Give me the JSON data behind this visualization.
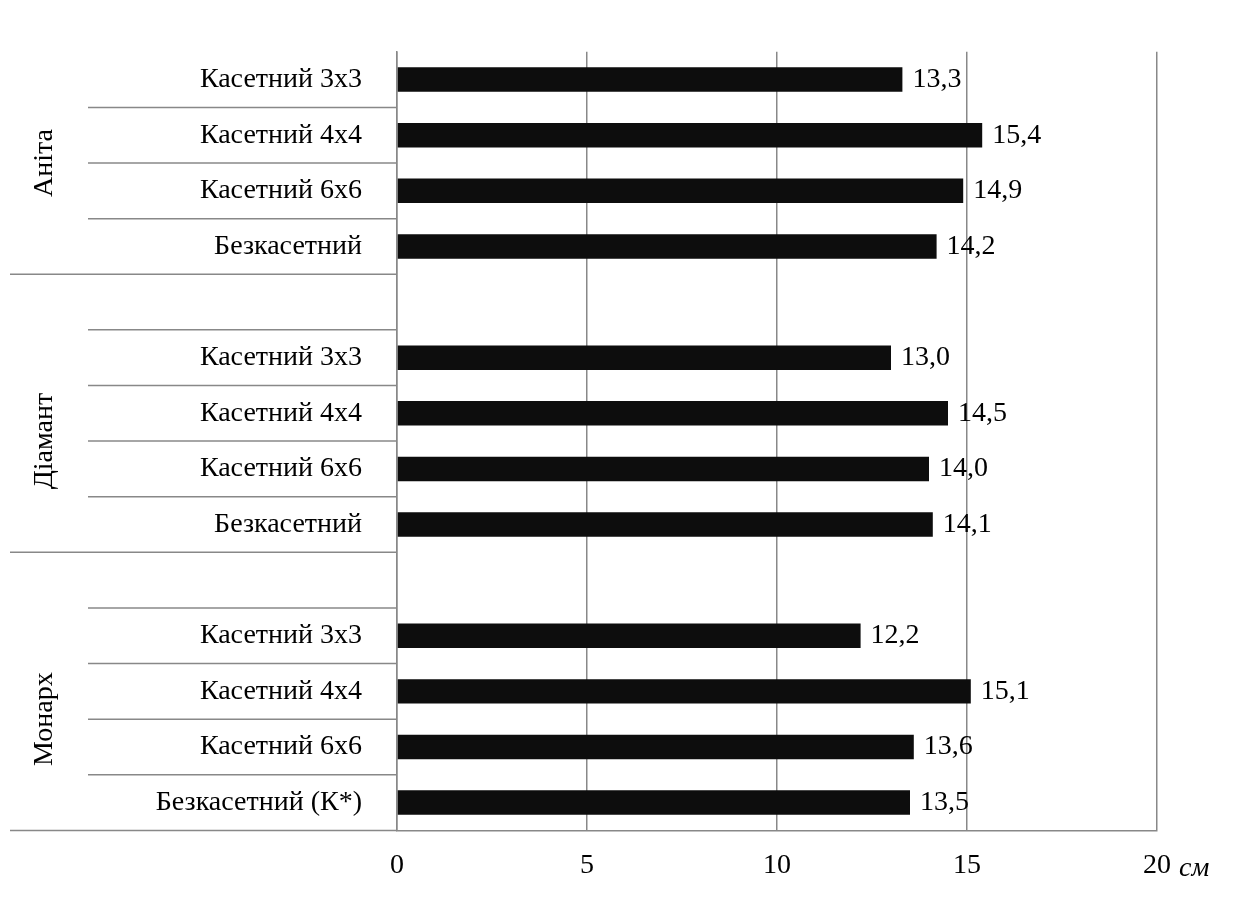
{
  "chart_data": {
    "type": "bar",
    "orientation": "horizontal",
    "categories": [
      "Касетний 3х3",
      "Касетний 4х4",
      "Касетний 6х6",
      "Безкасетний",
      null,
      "Касетний 3х3",
      "Касетний 4х4",
      "Касетний 6х6",
      "Безкасетний",
      null,
      "Касетний 3х3",
      "Касетний 4х4",
      "Касетний 6х6",
      "Безкасетний (К*)"
    ],
    "values": [
      13.3,
      15.4,
      14.9,
      14.2,
      null,
      13.0,
      14.5,
      14.0,
      14.1,
      null,
      12.2,
      15.1,
      13.6,
      13.5
    ],
    "value_labels": [
      "13,3",
      "15,4",
      "14,9",
      "14,2",
      null,
      "13,0",
      "14,5",
      "14,0",
      "14,1",
      null,
      "12,2",
      "15,1",
      "13,6",
      "13,5"
    ],
    "color": "#0d0d0d",
    "xlabel": "см",
    "annotations": [
      "Аніта",
      "Діамант",
      "Монарх"
    ],
    "xlim": [
      0,
      20
    ],
    "xticks": [
      0,
      5,
      10,
      15,
      20
    ],
    "grid": "x",
    "legend": false
  }
}
